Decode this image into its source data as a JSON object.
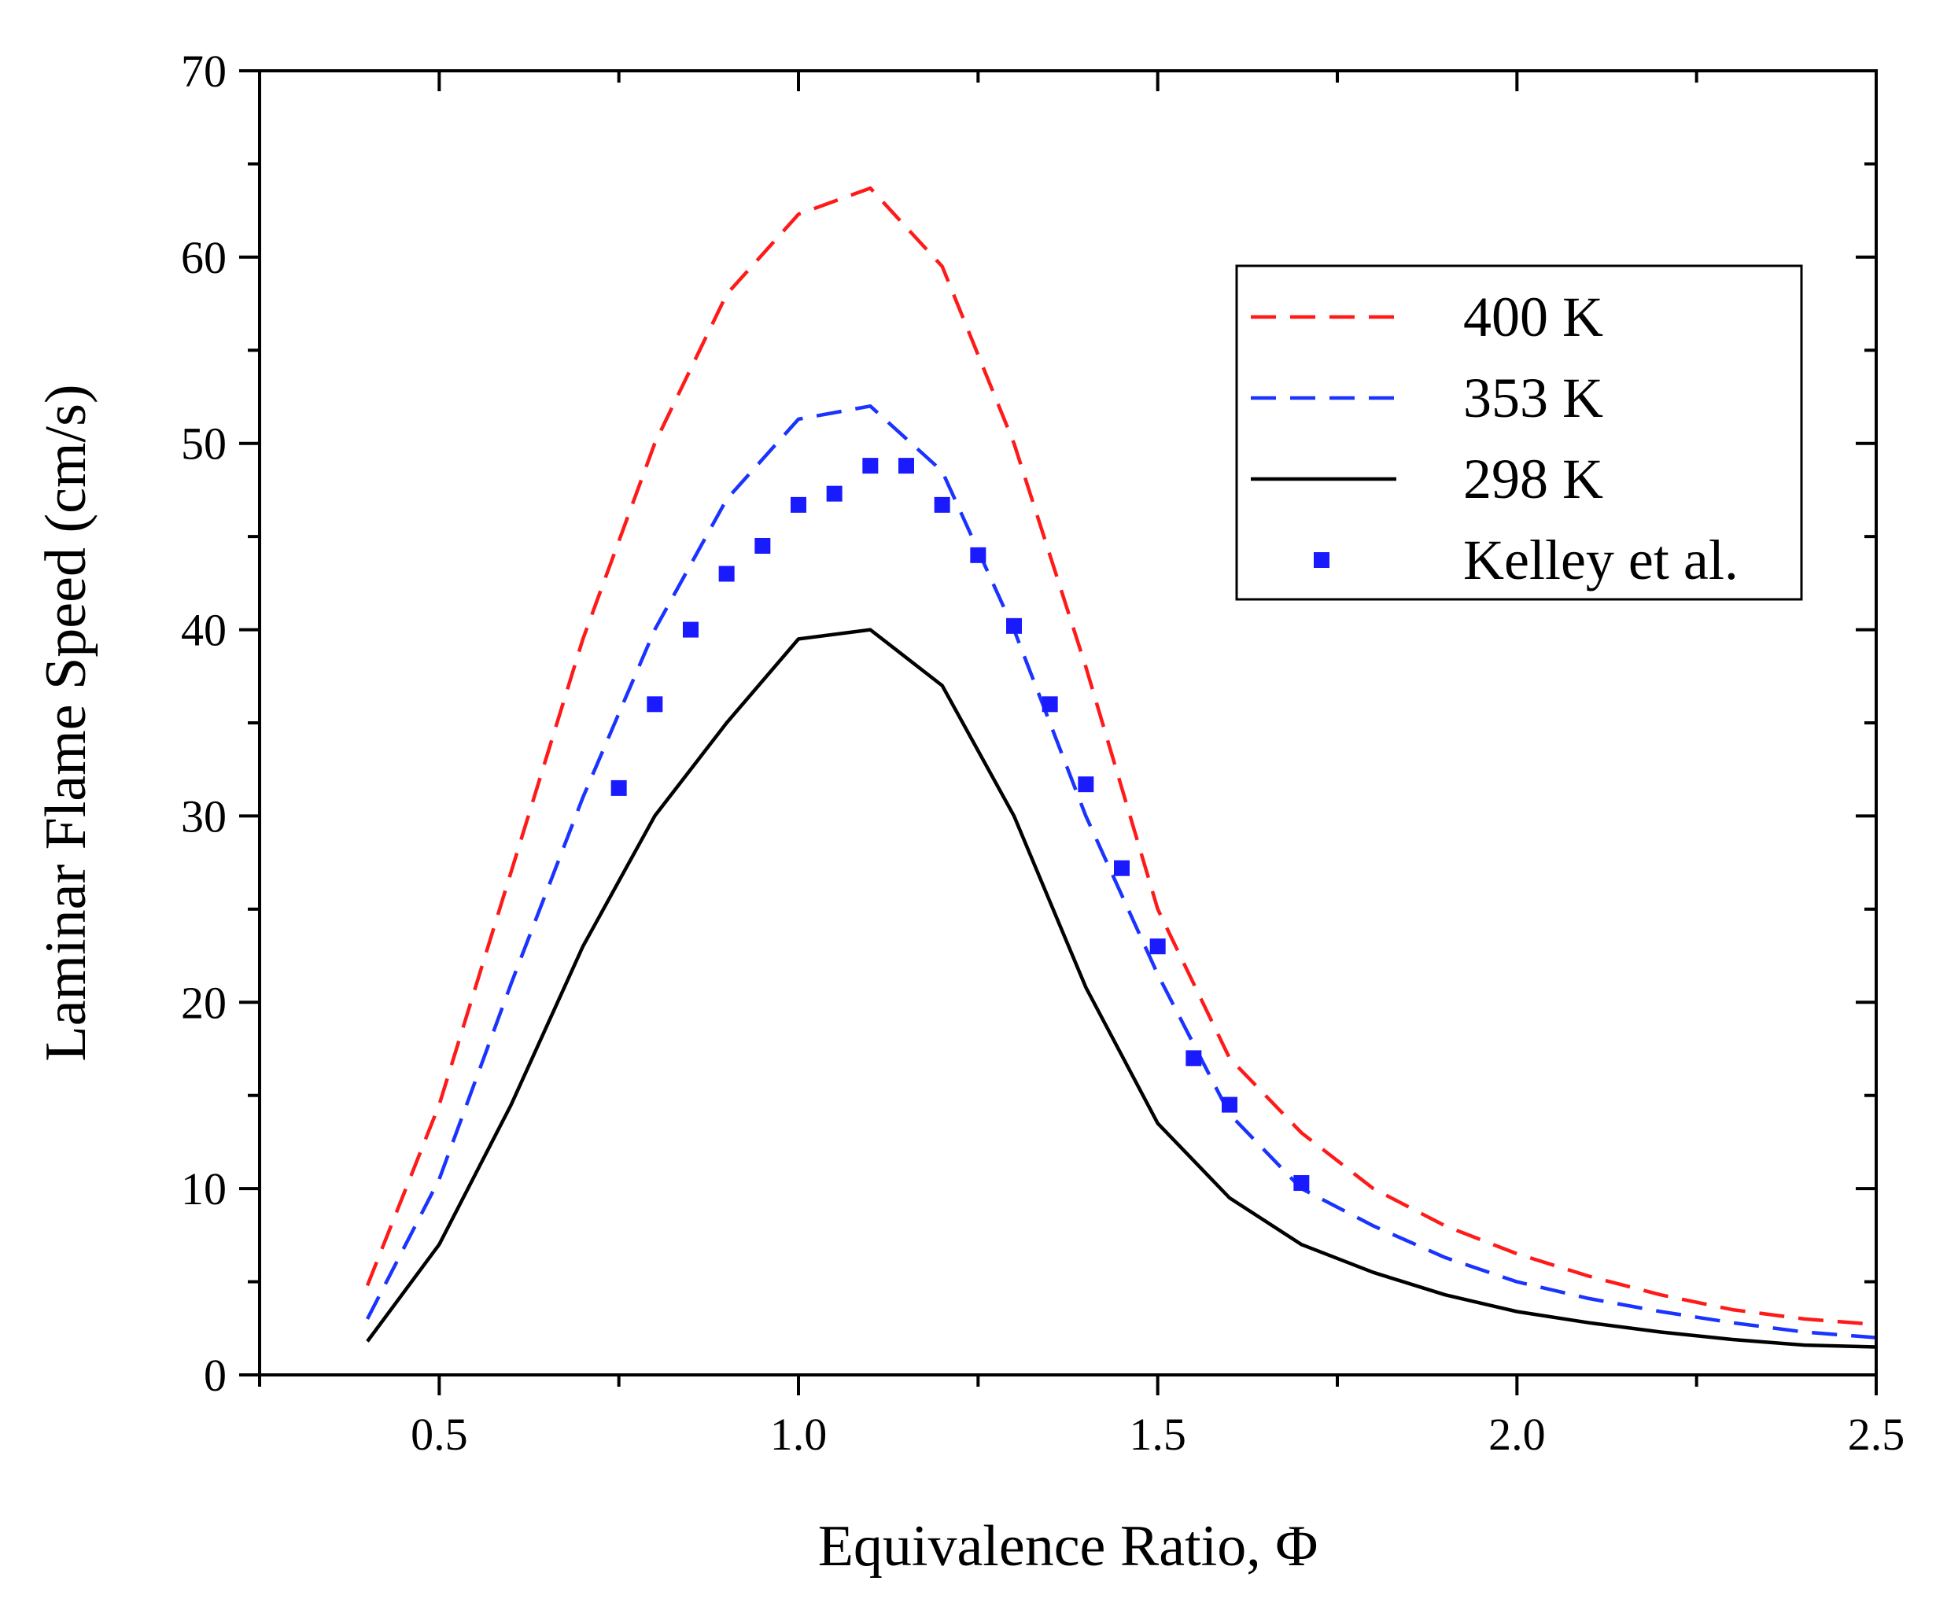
{
  "chart_data": {
    "type": "line",
    "title": "",
    "xlabel": "Equivalence Ratio, Φ",
    "ylabel": "Laminar Flame Speed (cm/s)",
    "xlim": [
      0.25,
      2.5
    ],
    "ylim": [
      0,
      70
    ],
    "xticks": [
      0.5,
      1.0,
      1.5,
      2.0,
      2.5
    ],
    "xtick_labels": [
      "0.5",
      "1.0",
      "1.5",
      "2.0",
      "2.5"
    ],
    "yticks": [
      0,
      10,
      20,
      30,
      40,
      50,
      60,
      70
    ],
    "ytick_labels": [
      "0",
      "10",
      "20",
      "30",
      "40",
      "50",
      "60",
      "70"
    ],
    "grid": false,
    "legend_position": "top-right",
    "series": [
      {
        "name": "400 K",
        "style": "dashed",
        "color": "#ff1a1a",
        "x": [
          0.4,
          0.5,
          0.6,
          0.7,
          0.8,
          0.9,
          1.0,
          1.1,
          1.2,
          1.3,
          1.4,
          1.5,
          1.6,
          1.7,
          1.8,
          1.9,
          2.0,
          2.1,
          2.2,
          2.3,
          2.4,
          2.5
        ],
        "values": [
          4.8,
          14.5,
          27.0,
          39.5,
          50.0,
          58.0,
          62.3,
          63.7,
          59.5,
          50.0,
          38.0,
          25.0,
          17.0,
          13.0,
          10.0,
          8.0,
          6.5,
          5.3,
          4.3,
          3.5,
          3.0,
          2.7
        ]
      },
      {
        "name": "353 K",
        "style": "dashed",
        "color": "#1a33ff",
        "x": [
          0.4,
          0.5,
          0.6,
          0.7,
          0.8,
          0.9,
          1.0,
          1.1,
          1.2,
          1.3,
          1.4,
          1.5,
          1.6,
          1.7,
          1.8,
          1.9,
          2.0,
          2.1,
          2.2,
          2.3,
          2.4,
          2.5
        ],
        "values": [
          3.0,
          10.5,
          21.0,
          31.0,
          40.0,
          47.0,
          51.3,
          52.0,
          48.5,
          40.0,
          30.0,
          21.5,
          14.0,
          10.0,
          8.0,
          6.3,
          5.0,
          4.1,
          3.4,
          2.8,
          2.3,
          2.0
        ]
      },
      {
        "name": "298 K",
        "style": "solid",
        "color": "#000000",
        "x": [
          0.4,
          0.5,
          0.6,
          0.7,
          0.8,
          0.9,
          1.0,
          1.1,
          1.2,
          1.3,
          1.4,
          1.5,
          1.6,
          1.7,
          1.8,
          1.9,
          2.0,
          2.1,
          2.2,
          2.3,
          2.4,
          2.5
        ],
        "values": [
          1.8,
          7.0,
          14.5,
          23.0,
          30.0,
          35.0,
          39.5,
          40.0,
          37.0,
          30.0,
          20.8,
          13.5,
          9.5,
          7.0,
          5.5,
          4.3,
          3.4,
          2.8,
          2.3,
          1.9,
          1.6,
          1.5
        ]
      },
      {
        "name": "Kelley et al.",
        "style": "markers",
        "color": "#1a1aff",
        "x": [
          0.75,
          0.8,
          0.85,
          0.9,
          0.95,
          1.0,
          1.05,
          1.1,
          1.15,
          1.2,
          1.25,
          1.3,
          1.35,
          1.4,
          1.45,
          1.5,
          1.55,
          1.6,
          1.7
        ],
        "values": [
          31.5,
          36.0,
          40.0,
          43.0,
          44.5,
          46.7,
          47.3,
          48.8,
          48.8,
          46.7,
          44.0,
          40.2,
          36.0,
          31.7,
          27.2,
          23.0,
          17.0,
          14.5,
          10.3
        ]
      }
    ]
  }
}
